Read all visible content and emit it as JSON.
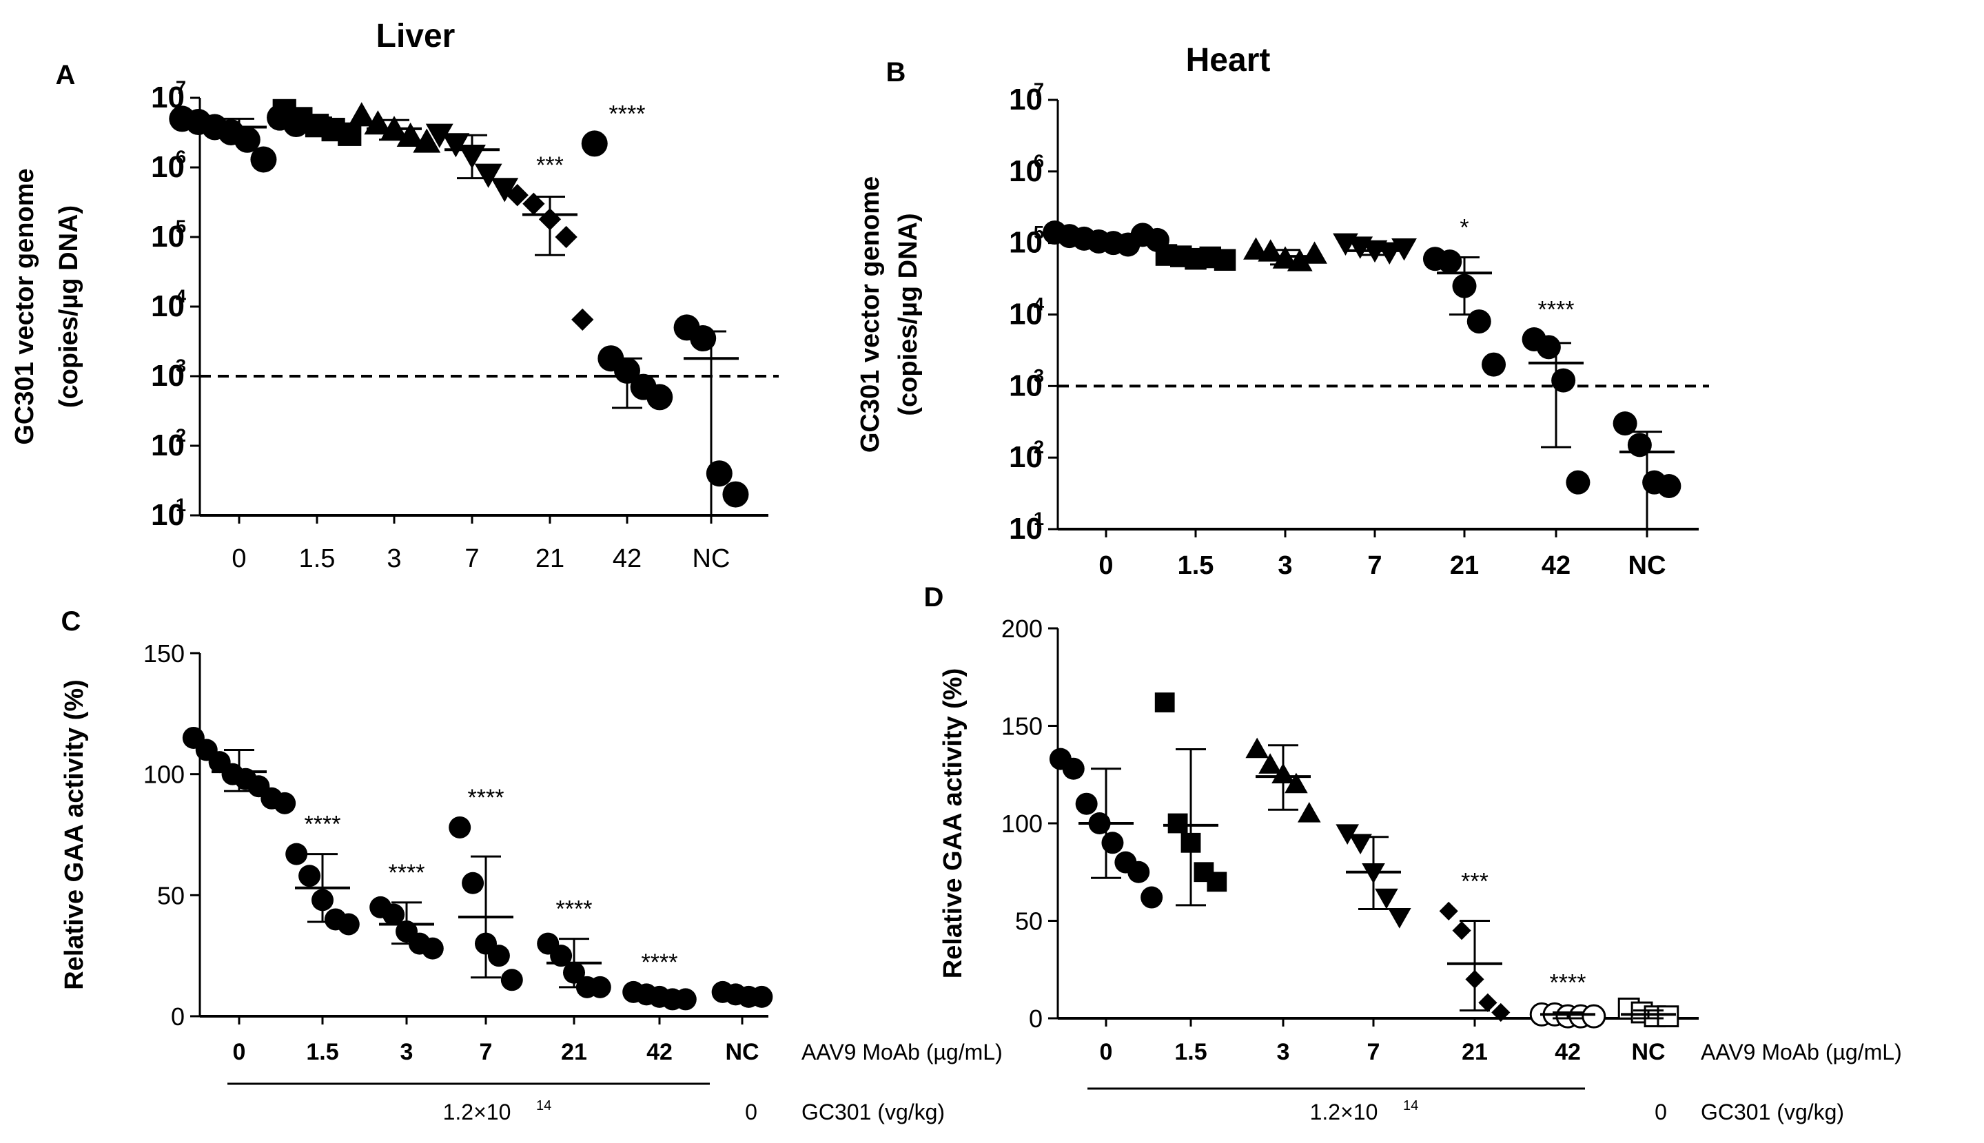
{
  "figure_note": "Four-panel scatter figure with mean ± SD bars",
  "chart_data": [
    {
      "panel_letter": "A",
      "type": "scatter",
      "title": "Liver",
      "xlabel": "",
      "ylabel": [
        "GC301 vector genome",
        "(copies/µg DNA)"
      ],
      "yscale": "log",
      "ylim": [
        10,
        10000000
      ],
      "yticks": [
        {
          "value": 10,
          "base": "10",
          "exp": "1"
        },
        {
          "value": 100,
          "base": "10",
          "exp": "2"
        },
        {
          "value": 1000,
          "base": "10",
          "exp": "3"
        },
        {
          "value": 10000,
          "base": "10",
          "exp": "4"
        },
        {
          "value": 100000,
          "base": "10",
          "exp": "5"
        },
        {
          "value": 1000000,
          "base": "10",
          "exp": "6"
        },
        {
          "value": 10000000,
          "base": "10",
          "exp": "7"
        }
      ],
      "reference_line": 1000,
      "categories": [
        "0",
        "1.5",
        "3",
        "7",
        "21",
        "42",
        "NC"
      ],
      "markers": [
        "circle",
        "square",
        "triangle-up",
        "triangle-down",
        "diamond",
        "circle",
        "circle"
      ],
      "points": [
        [
          5000000,
          4500000,
          3800000,
          3200000,
          2500000,
          1300000,
          5200000,
          4200000
        ],
        [
          6500000,
          5000000,
          4000000,
          3500000,
          3000000
        ],
        [
          5500000,
          4200000,
          3500000,
          2800000,
          2300000
        ],
        [
          3000000,
          2200000,
          1500000,
          800000,
          500000
        ],
        [
          400000,
          300000,
          180000,
          100000,
          6500
        ],
        [
          2200000,
          1800,
          1200,
          700,
          500
        ],
        [
          5000,
          3500,
          40,
          20
        ]
      ],
      "means": [
        3800000,
        4300000,
        3600000,
        1800000,
        210000,
        1000,
        1800
      ],
      "err_low": [
        2700000,
        3500000,
        2500000,
        700000,
        55000,
        350,
        10
      ],
      "err_high": [
        5000000,
        5200000,
        4800000,
        2900000,
        380000,
        1800,
        4400
      ],
      "significance": [
        "",
        "",
        "",
        "",
        "***",
        "****",
        ""
      ]
    },
    {
      "panel_letter": "B",
      "type": "scatter",
      "title": "Heart",
      "xlabel": "",
      "ylabel": [
        "GC301 vector genome",
        "(copies/µg DNA)"
      ],
      "yscale": "log",
      "ylim": [
        10,
        10000000
      ],
      "yticks": [
        {
          "value": 10,
          "base": "10",
          "exp": "1"
        },
        {
          "value": 100,
          "base": "10",
          "exp": "2"
        },
        {
          "value": 1000,
          "base": "10",
          "exp": "3"
        },
        {
          "value": 10000,
          "base": "10",
          "exp": "4"
        },
        {
          "value": 100000,
          "base": "10",
          "exp": "5"
        },
        {
          "value": 1000000,
          "base": "10",
          "exp": "6"
        },
        {
          "value": 10000000,
          "base": "10",
          "exp": "7"
        }
      ],
      "reference_line": 1000,
      "categories": [
        "0",
        "1.5",
        "3",
        "7",
        "21",
        "42",
        "NC"
      ],
      "markers": [
        "circle",
        "square",
        "triangle-up",
        "triangle-down",
        "circle",
        "circle",
        "circle"
      ],
      "points": [
        [
          140000,
          125000,
          115000,
          105000,
          100000,
          95000,
          130000,
          110000
        ],
        [
          68000,
          65000,
          60000,
          63000,
          58000
        ],
        [
          80000,
          75000,
          60000,
          55000,
          70000
        ],
        [
          100000,
          90000,
          80000,
          75000,
          85000
        ],
        [
          60000,
          55000,
          25000,
          8000,
          2000
        ],
        [
          4500,
          3500,
          1200,
          45
        ],
        [
          300,
          150,
          45,
          40
        ]
      ],
      "means": [
        110000,
        62000,
        65000,
        78000,
        38000,
        2100,
        120
      ],
      "err_low": [
        95000,
        57000,
        50000,
        68000,
        10000,
        140,
        10
      ],
      "err_high": [
        125000,
        68000,
        80000,
        92000,
        63000,
        4000,
        230
      ],
      "significance": [
        "",
        "",
        "",
        "",
        "*",
        "****",
        ""
      ]
    },
    {
      "panel_letter": "C",
      "type": "scatter",
      "title": "",
      "xlabel": "",
      "ylabel": [
        "Relative GAA activity (%)"
      ],
      "yscale": "linear",
      "ylim": [
        0,
        150
      ],
      "yticks": [
        {
          "value": 0,
          "label": "0"
        },
        {
          "value": 50,
          "label": "50"
        },
        {
          "value": 100,
          "label": "100"
        },
        {
          "value": 150,
          "label": "150"
        }
      ],
      "categories": [
        "0",
        "1.5",
        "3",
        "7",
        "21",
        "42",
        "NC"
      ],
      "markers": [
        "circle",
        "circle",
        "circle",
        "circle",
        "circle",
        "circle",
        "circle"
      ],
      "points": [
        [
          115,
          110,
          105,
          100,
          98,
          95,
          90,
          88
        ],
        [
          67,
          58,
          48,
          40,
          38
        ],
        [
          45,
          42,
          35,
          30,
          28
        ],
        [
          78,
          55,
          30,
          25,
          15
        ],
        [
          30,
          25,
          18,
          12,
          12
        ],
        [
          10,
          9,
          8,
          7,
          7
        ],
        [
          10,
          9,
          8,
          8
        ]
      ],
      "means": [
        101,
        53,
        38,
        41,
        22,
        8.5,
        9
      ],
      "err_low": [
        93,
        39,
        30,
        16,
        12,
        7,
        8
      ],
      "err_high": [
        110,
        67,
        47,
        66,
        32,
        10,
        10
      ],
      "significance": [
        "",
        "****",
        "****",
        "****",
        "****",
        "****",
        ""
      ],
      "side_labels": [
        "AAV9 MoAb (µg/mL)",
        "GC301 (vg/kg)"
      ],
      "dose_treated": "1.2×10",
      "dose_treated_exp": "14",
      "dose_control": "0"
    },
    {
      "panel_letter": "D",
      "type": "scatter",
      "title": "",
      "xlabel": "",
      "ylabel": [
        "Relative GAA activity (%)"
      ],
      "yscale": "linear",
      "ylim": [
        0,
        200
      ],
      "yticks": [
        {
          "value": 0,
          "label": "0"
        },
        {
          "value": 50,
          "label": "50"
        },
        {
          "value": 100,
          "label": "100"
        },
        {
          "value": 150,
          "label": "150"
        },
        {
          "value": 200,
          "label": "200"
        }
      ],
      "categories": [
        "0",
        "1.5",
        "3",
        "7",
        "21",
        "42",
        "NC"
      ],
      "markers": [
        "circle",
        "square",
        "triangle-up",
        "triangle-down",
        "diamond",
        "circle-open",
        "square-open"
      ],
      "points": [
        [
          133,
          128,
          110,
          100,
          90,
          80,
          75,
          62
        ],
        [
          162,
          100,
          90,
          75,
          70
        ],
        [
          138,
          130,
          125,
          120,
          105
        ],
        [
          95,
          90,
          75,
          62,
          52
        ],
        [
          55,
          45,
          20,
          8,
          3
        ],
        [
          2,
          2,
          1,
          1,
          1
        ],
        [
          5,
          3,
          1,
          1
        ]
      ],
      "means": [
        100,
        99,
        124,
        75,
        28,
        2,
        2
      ],
      "err_low": [
        72,
        58,
        107,
        56,
        4,
        0,
        0
      ],
      "err_high": [
        128,
        138,
        140,
        93,
        50,
        3,
        4
      ],
      "significance": [
        "",
        "",
        "",
        "",
        "***",
        "****",
        ""
      ],
      "side_labels": [
        "AAV9 MoAb (µg/mL)",
        "GC301 (vg/kg)"
      ],
      "dose_treated": "1.2×10",
      "dose_treated_exp": "14",
      "dose_control": "0"
    }
  ]
}
